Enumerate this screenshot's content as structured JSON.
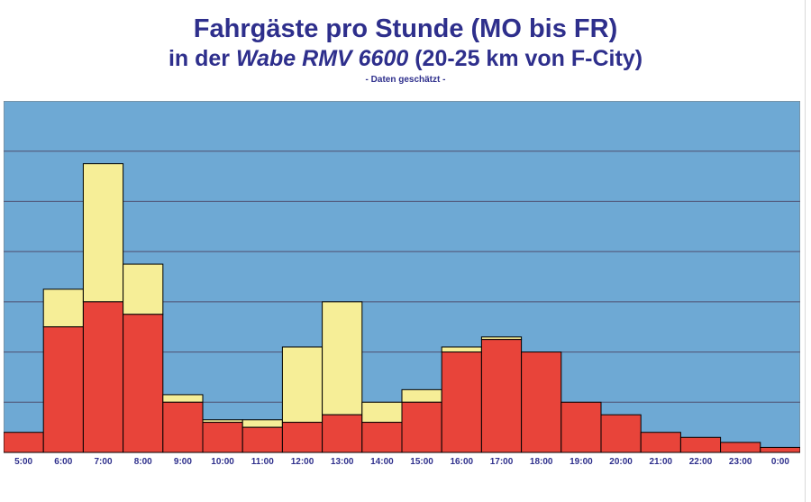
{
  "title": {
    "line1": "Fahrgäste pro Stunde  (MO bis FR)",
    "line2_prefix": "in der ",
    "line2_italic": "Wabe RMV 6600",
    "line2_suffix": "  (20-25 km von F-City)",
    "subtitle": "- Daten geschätzt -"
  },
  "colors": {
    "background": "#6ea9d4",
    "bar_lower": "#e8443a",
    "bar_upper": "#f6ee97",
    "grid": "#4f4f6f",
    "axis_text": "#2e2f8c"
  },
  "chart_data": {
    "type": "bar",
    "stacked": true,
    "categories": [
      "5:00",
      "6:00",
      "7:00",
      "8:00",
      "9:00",
      "10:00",
      "11:00",
      "12:00",
      "13:00",
      "14:00",
      "15:00",
      "16:00",
      "17:00",
      "18:00",
      "19:00",
      "20:00",
      "21:00",
      "22:00",
      "23:00",
      "0:00"
    ],
    "series": [
      {
        "values": [
          0.4,
          2.5,
          3.0,
          2.75,
          1.0,
          0.6,
          0.5,
          0.6,
          0.75,
          0.6,
          1.0,
          2.0,
          2.25,
          2.0,
          1.0,
          0.75,
          0.4,
          0.3,
          0.2,
          0.1
        ]
      },
      {
        "values": [
          0,
          0.75,
          2.75,
          1.0,
          0.15,
          0.05,
          0.15,
          1.5,
          2.25,
          0.4,
          0.25,
          0.1,
          0.05,
          0,
          0,
          0,
          0,
          0,
          0,
          0
        ]
      }
    ],
    "ylim": [
      0,
      7
    ],
    "grid": true,
    "y_tick_labels": false,
    "legend": "none"
  }
}
